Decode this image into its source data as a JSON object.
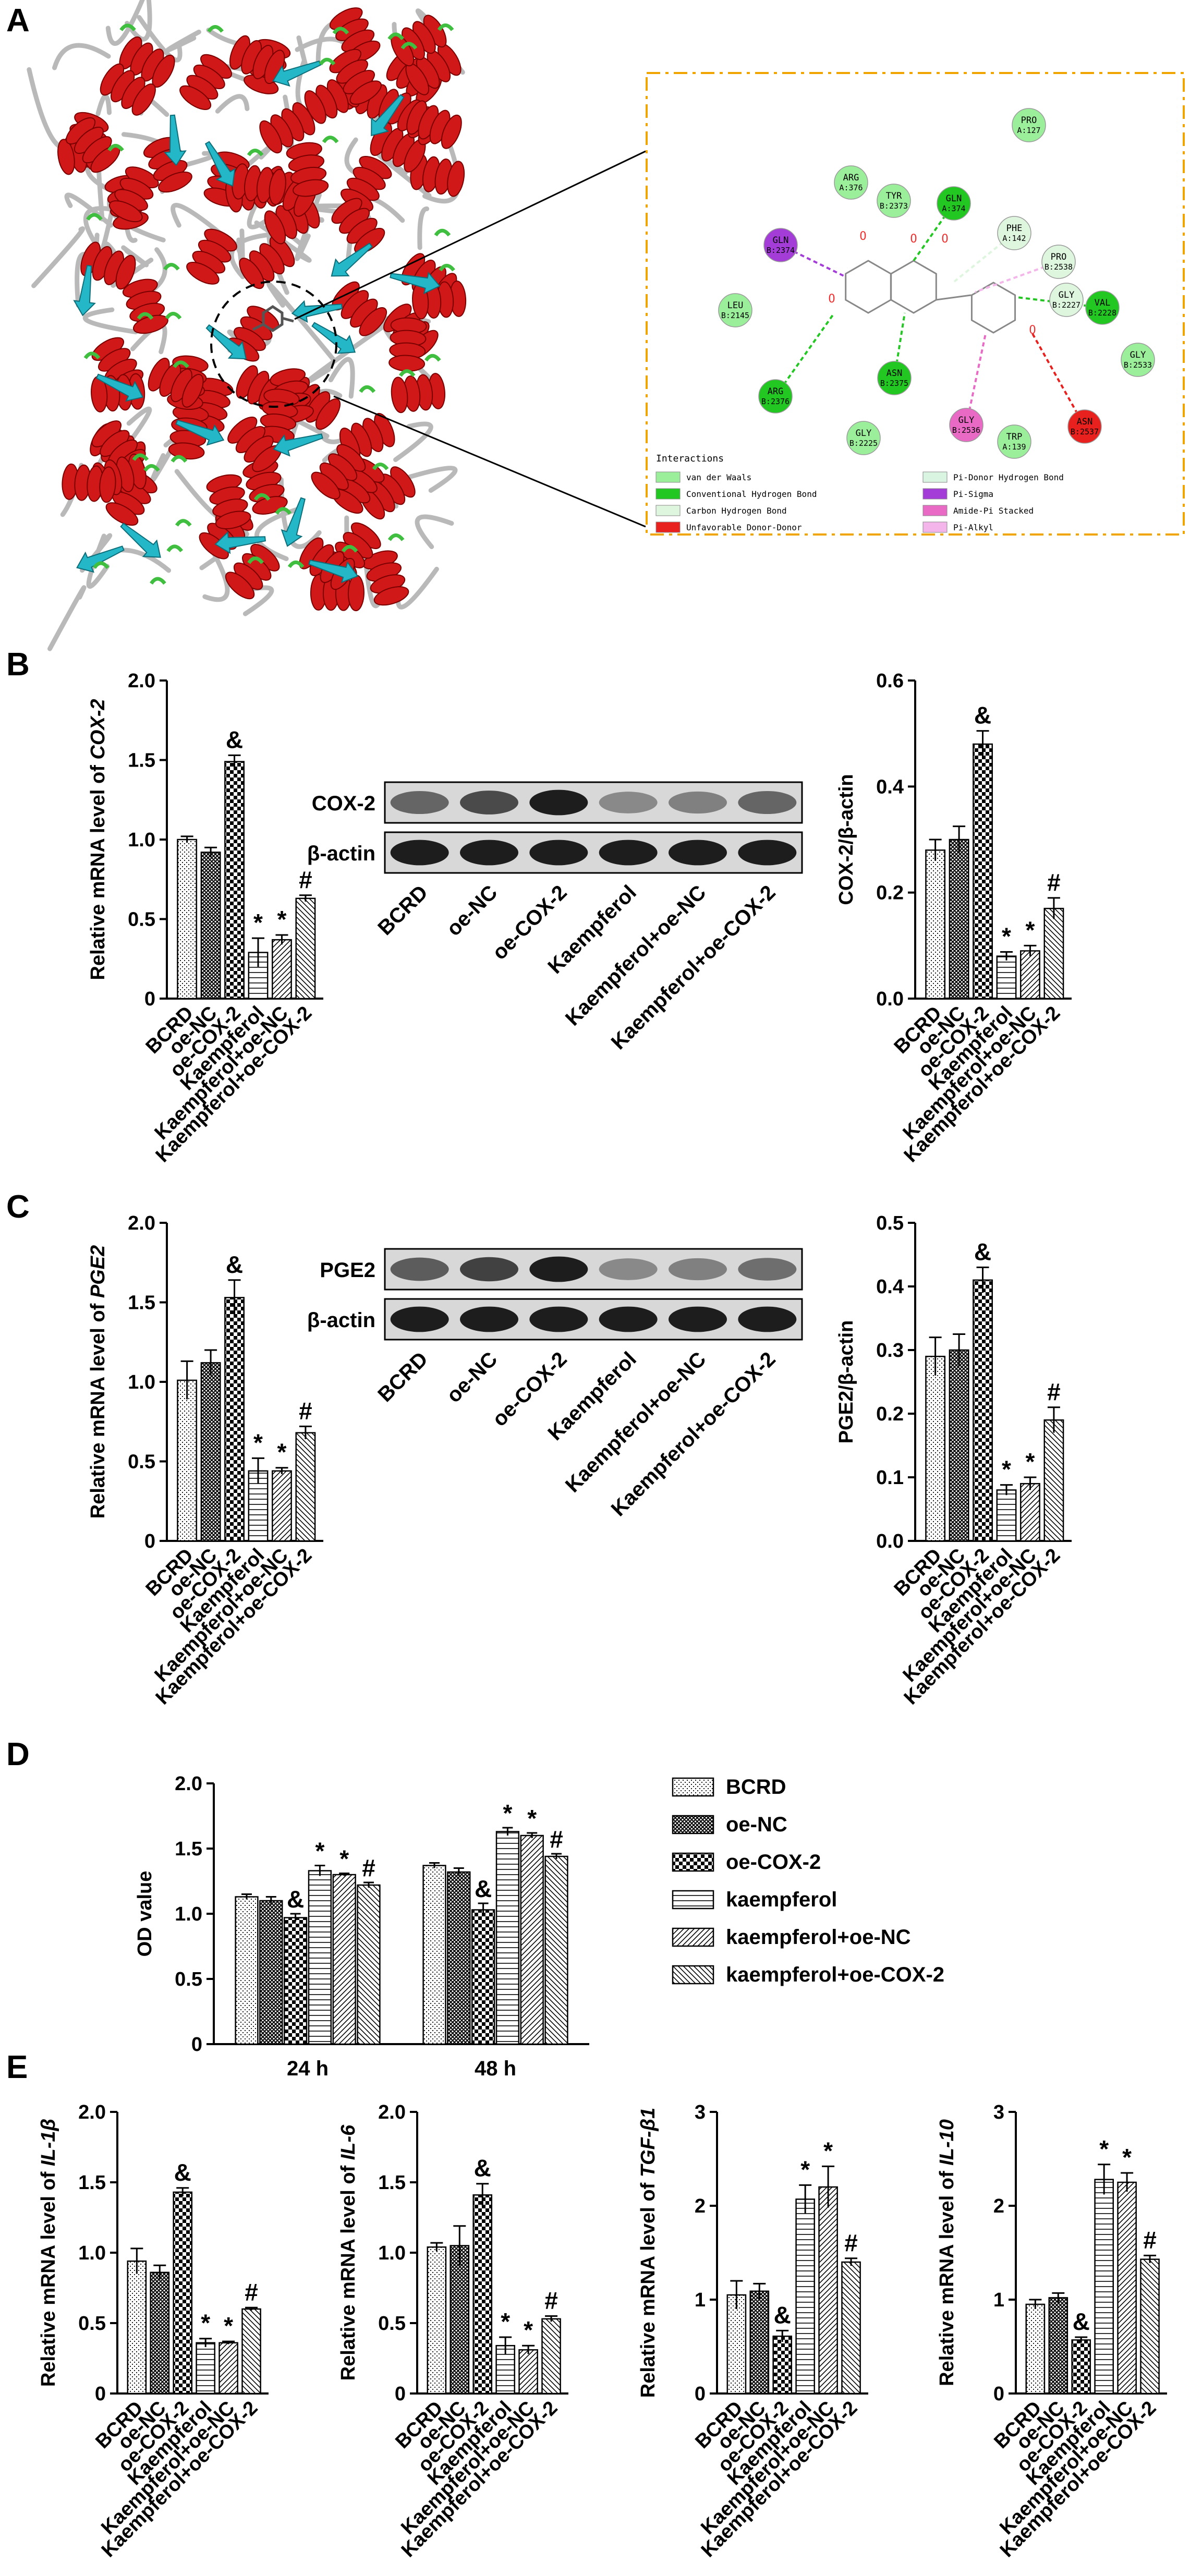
{
  "figure": {
    "panel_labels": [
      "A",
      "B",
      "C",
      "D",
      "E"
    ],
    "group_labels": [
      "BCRD",
      "oe-NC",
      "oe-COX-2",
      "Kaempferol",
      "Kaempferol+oe-NC",
      "Kaempferol+oe-COX-2"
    ],
    "blot_lane_labels": [
      "BCRD",
      "oe-NC",
      "oe-COX-2",
      "Kaempferol",
      "Kaempferol+oe-NC",
      "Kaempferol+oe-COX-2"
    ]
  },
  "docking": {
    "residues": [
      {
        "name": "PRO",
        "id": "A:127",
        "type": "vdw"
      },
      {
        "name": "ARG",
        "id": "A:376",
        "type": "vdw"
      },
      {
        "name": "TYR",
        "id": "B:2373",
        "type": "vdw"
      },
      {
        "name": "GLN",
        "id": "A:374",
        "type": "hbond"
      },
      {
        "name": "PHE",
        "id": "A:142",
        "type": "pidonor"
      },
      {
        "name": "GLN",
        "id": "B:2374",
        "type": "pisigma"
      },
      {
        "name": "PRO",
        "id": "B:2538",
        "type": "pidonor"
      },
      {
        "name": "GLY",
        "id": "B:2227",
        "type": "pidonor"
      },
      {
        "name": "VAL",
        "id": "B:2228",
        "type": "hbond"
      },
      {
        "name": "LEU",
        "id": "B:2145",
        "type": "vdw"
      },
      {
        "name": "GLY",
        "id": "B:2533",
        "type": "vdw"
      },
      {
        "name": "ASN",
        "id": "B:2375",
        "type": "hbond"
      },
      {
        "name": "ARG",
        "id": "B:2376",
        "type": "hbond"
      },
      {
        "name": "GLY",
        "id": "B:2225",
        "type": "vdw"
      },
      {
        "name": "GLY",
        "id": "B:2536",
        "type": "amide"
      },
      {
        "name": "TRP",
        "id": "A:139",
        "type": "vdw"
      },
      {
        "name": "ASN",
        "id": "B:2537",
        "type": "unfav"
      }
    ],
    "legend_title": "Interactions",
    "legend": [
      {
        "label": "van der Waals",
        "color": "#9BEF9B"
      },
      {
        "label": "Conventional Hydrogen Bond",
        "color": "#22C722"
      },
      {
        "label": "Carbon Hydrogen Bond",
        "color": "#DDF6DD"
      },
      {
        "label": "Unfavorable Donor-Donor",
        "color": "#E8201E"
      },
      {
        "label": "Pi-Donor Hydrogen Bond",
        "color": "#D9F5E2"
      },
      {
        "label": "Pi-Sigma",
        "color": "#A43DD8"
      },
      {
        "label": "Amide-Pi Stacked",
        "color": "#E96AC4"
      },
      {
        "label": "Pi-Alkyl",
        "color": "#F4B6EA"
      }
    ]
  },
  "chart_data": [
    {
      "id": "B-mrna",
      "type": "bar",
      "ylabel_prefix": "Relative mRNA level of ",
      "ylabel_gene": "COX-2",
      "ylim": [
        0,
        2.0
      ],
      "ticks": [
        "0",
        "0.5",
        "1.0",
        "1.5",
        "2.0"
      ],
      "tickvals": [
        0,
        0.5,
        1.0,
        1.5,
        2.0
      ],
      "values": [
        1.0,
        0.92,
        1.49,
        0.29,
        0.37,
        0.63
      ],
      "errors": [
        0.02,
        0.03,
        0.04,
        0.09,
        0.03,
        0.02
      ],
      "annotations": [
        "",
        "",
        "&",
        "*",
        "*",
        "#"
      ]
    },
    {
      "id": "B-ratio",
      "type": "bar",
      "ylabel_prefix": "COX-2/β-actin",
      "ylabel_gene": "",
      "ylim": [
        0,
        0.6
      ],
      "ticks": [
        "0.0",
        "0.2",
        "0.4",
        "0.6"
      ],
      "tickvals": [
        0,
        0.2,
        0.4,
        0.6
      ],
      "values": [
        0.28,
        0.3,
        0.48,
        0.08,
        0.09,
        0.17
      ],
      "errors": [
        0.02,
        0.025,
        0.025,
        0.008,
        0.01,
        0.02
      ],
      "annotations": [
        "",
        "",
        "&",
        "*",
        "*",
        "#"
      ]
    },
    {
      "id": "C-mrna",
      "type": "bar",
      "ylabel_prefix": "Relative mRNA level of ",
      "ylabel_gene": "PGE2",
      "ylim": [
        0,
        2.0
      ],
      "ticks": [
        "0",
        "0.5",
        "1.0",
        "1.5",
        "2.0"
      ],
      "tickvals": [
        0,
        0.5,
        1.0,
        1.5,
        2.0
      ],
      "values": [
        1.01,
        1.12,
        1.53,
        0.44,
        0.44,
        0.68
      ],
      "errors": [
        0.12,
        0.08,
        0.11,
        0.08,
        0.02,
        0.04
      ],
      "annotations": [
        "",
        "",
        "&",
        "*",
        "*",
        "#"
      ]
    },
    {
      "id": "C-ratio",
      "type": "bar",
      "ylabel_prefix": "PGE2/β-actin",
      "ylabel_gene": "",
      "ylim": [
        0,
        0.5
      ],
      "ticks": [
        "0.0",
        "0.1",
        "0.2",
        "0.3",
        "0.4",
        "0.5"
      ],
      "tickvals": [
        0,
        0.1,
        0.2,
        0.3,
        0.4,
        0.5
      ],
      "values": [
        0.29,
        0.3,
        0.41,
        0.08,
        0.09,
        0.19
      ],
      "errors": [
        0.03,
        0.025,
        0.02,
        0.008,
        0.01,
        0.02
      ],
      "annotations": [
        "",
        "",
        "&",
        "*",
        "*",
        "#"
      ]
    },
    {
      "id": "D",
      "type": "bar",
      "ylabel": "OD value",
      "ylim": [
        0,
        2.0
      ],
      "ticks": [
        "0",
        "0.5",
        "1.0",
        "1.5",
        "2.0"
      ],
      "tickvals": [
        0,
        0.5,
        1.0,
        1.5,
        2.0
      ],
      "categories": [
        "24 h",
        "48 h"
      ],
      "series": [
        {
          "name": "BCRD",
          "values": [
            1.13,
            1.37
          ],
          "errors": [
            0.02,
            0.02
          ],
          "annotations": [
            "",
            ""
          ]
        },
        {
          "name": "oe-NC",
          "values": [
            1.1,
            1.32
          ],
          "errors": [
            0.03,
            0.03
          ],
          "annotations": [
            "",
            ""
          ]
        },
        {
          "name": "oe-COX-2",
          "values": [
            0.97,
            1.03
          ],
          "errors": [
            0.03,
            0.05
          ],
          "annotations": [
            "&",
            "&"
          ]
        },
        {
          "name": "kaempferol",
          "values": [
            1.33,
            1.63
          ],
          "errors": [
            0.04,
            0.03
          ],
          "annotations": [
            "*",
            "*"
          ]
        },
        {
          "name": "kaempferol+oe-NC",
          "values": [
            1.3,
            1.6
          ],
          "errors": [
            0.01,
            0.02
          ],
          "annotations": [
            "*",
            "*"
          ]
        },
        {
          "name": "kaempferol+oe-COX-2",
          "values": [
            1.22,
            1.44
          ],
          "errors": [
            0.02,
            0.02
          ],
          "annotations": [
            "#",
            "#"
          ]
        }
      ]
    },
    {
      "id": "E-il1b",
      "type": "bar",
      "ylabel_prefix": "Relative mRNA level of ",
      "ylabel_gene": "IL-1β",
      "ylim": [
        0,
        2.0
      ],
      "ticks": [
        "0",
        "0.5",
        "1.0",
        "1.5",
        "2.0"
      ],
      "tickvals": [
        0,
        0.5,
        1.0,
        1.5,
        2.0
      ],
      "values": [
        0.94,
        0.86,
        1.43,
        0.36,
        0.36,
        0.6
      ],
      "errors": [
        0.09,
        0.05,
        0.03,
        0.03,
        0.01,
        0.01
      ],
      "annotations": [
        "",
        "",
        "&",
        "*",
        "*",
        "#"
      ]
    },
    {
      "id": "E-il6",
      "type": "bar",
      "ylabel_prefix": "Relative mRNA level of ",
      "ylabel_gene": "IL-6",
      "ylim": [
        0,
        2.0
      ],
      "ticks": [
        "0",
        "0.5",
        "1.0",
        "1.5",
        "2.0"
      ],
      "tickvals": [
        0,
        0.5,
        1.0,
        1.5,
        2.0
      ],
      "values": [
        1.04,
        1.05,
        1.41,
        0.34,
        0.31,
        0.53
      ],
      "errors": [
        0.03,
        0.14,
        0.08,
        0.06,
        0.03,
        0.02
      ],
      "annotations": [
        "",
        "",
        "&",
        "*",
        "*",
        "#"
      ]
    },
    {
      "id": "E-tgfb1",
      "type": "bar",
      "ylabel_prefix": "Relative mRNA level of ",
      "ylabel_gene": "TGF-β1",
      "ylim": [
        0,
        3
      ],
      "ticks": [
        "0",
        "1",
        "2",
        "3"
      ],
      "tickvals": [
        0,
        1,
        2,
        3
      ],
      "values": [
        1.05,
        1.09,
        0.61,
        2.07,
        2.2,
        1.4
      ],
      "errors": [
        0.15,
        0.08,
        0.06,
        0.15,
        0.22,
        0.04
      ],
      "annotations": [
        "",
        "",
        "&",
        "*",
        "*",
        "#"
      ]
    },
    {
      "id": "E-il10",
      "type": "bar",
      "ylabel_prefix": "Relative mRNA level of ",
      "ylabel_gene": "IL-10",
      "ylim": [
        0,
        3
      ],
      "ticks": [
        "0",
        "1",
        "2",
        "3"
      ],
      "tickvals": [
        0,
        1,
        2,
        3
      ],
      "values": [
        0.95,
        1.02,
        0.57,
        2.28,
        2.25,
        1.43
      ],
      "errors": [
        0.05,
        0.05,
        0.03,
        0.16,
        0.1,
        0.04
      ],
      "annotations": [
        "",
        "",
        "&",
        "*",
        "*",
        "#"
      ]
    }
  ],
  "blots": [
    {
      "id": "B",
      "rows": [
        {
          "label": "COX-2"
        },
        {
          "label": "β-actin"
        }
      ]
    },
    {
      "id": "C",
      "rows": [
        {
          "label": "PGE2"
        },
        {
          "label": "β-actin"
        }
      ]
    }
  ]
}
